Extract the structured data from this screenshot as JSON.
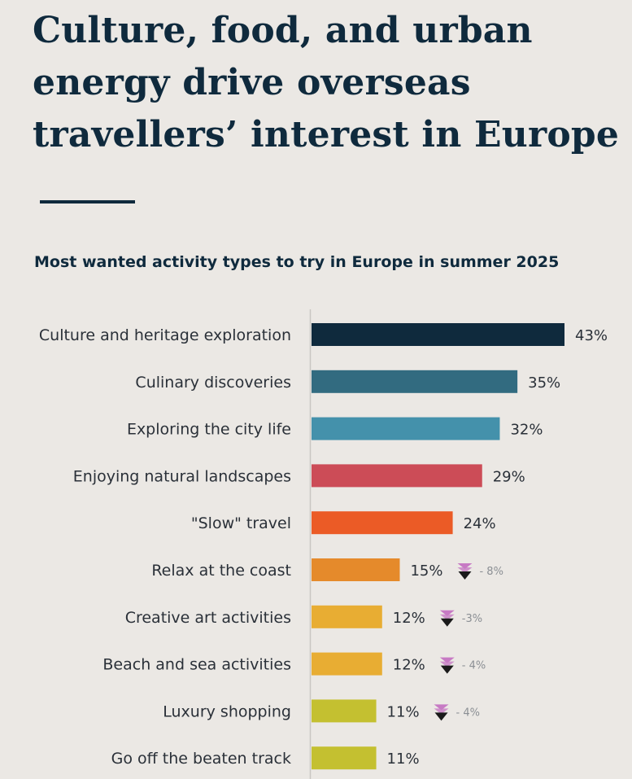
{
  "header": {
    "title": "Culture, food, and urban energy drive overseas travellers’ interest in Europe",
    "subtitle": "Most wanted activity types to try in Europe in summer 2025"
  },
  "colors": {
    "text": "#0f2a3d",
    "axis": "#c9c6c2",
    "down_arrow": "#1a1a1a",
    "down_arrow_tint": "#c77ac4"
  },
  "chart_data": {
    "type": "bar",
    "orientation": "horizontal",
    "title": "Most wanted activity types to try in Europe in summer 2025",
    "xlabel": "",
    "ylabel": "",
    "xlim": [
      0,
      43
    ],
    "grid": false,
    "legend": "none",
    "categories": [
      "Culture and heritage exploration",
      "Culinary discoveries",
      "Exploring the city life ",
      "Enjoying natural landscapes",
      "\"Slow\" travel",
      "Relax at the coast",
      "Creative art activities",
      "Beach and sea activities",
      "Luxury shopping",
      "Go off the beaten track"
    ],
    "values": [
      43,
      35,
      32,
      29,
      24,
      15,
      12,
      12,
      11,
      11
    ],
    "value_labels": [
      "43%",
      "35%",
      "32%",
      "29%",
      "24%",
      "15%",
      "12%",
      "12%",
      "11%",
      "11%"
    ],
    "changes": [
      "",
      "",
      "",
      "",
      "",
      "- 8%",
      "-3%",
      "- 4%",
      "- 4%",
      ""
    ],
    "bar_colors": [
      "#0f2a3d",
      "#326b80",
      "#4491ab",
      "#cc4c57",
      "#eb5b26",
      "#e58a2b",
      "#e8ad33",
      "#e8ad33",
      "#c4c030",
      "#c4c030"
    ]
  }
}
